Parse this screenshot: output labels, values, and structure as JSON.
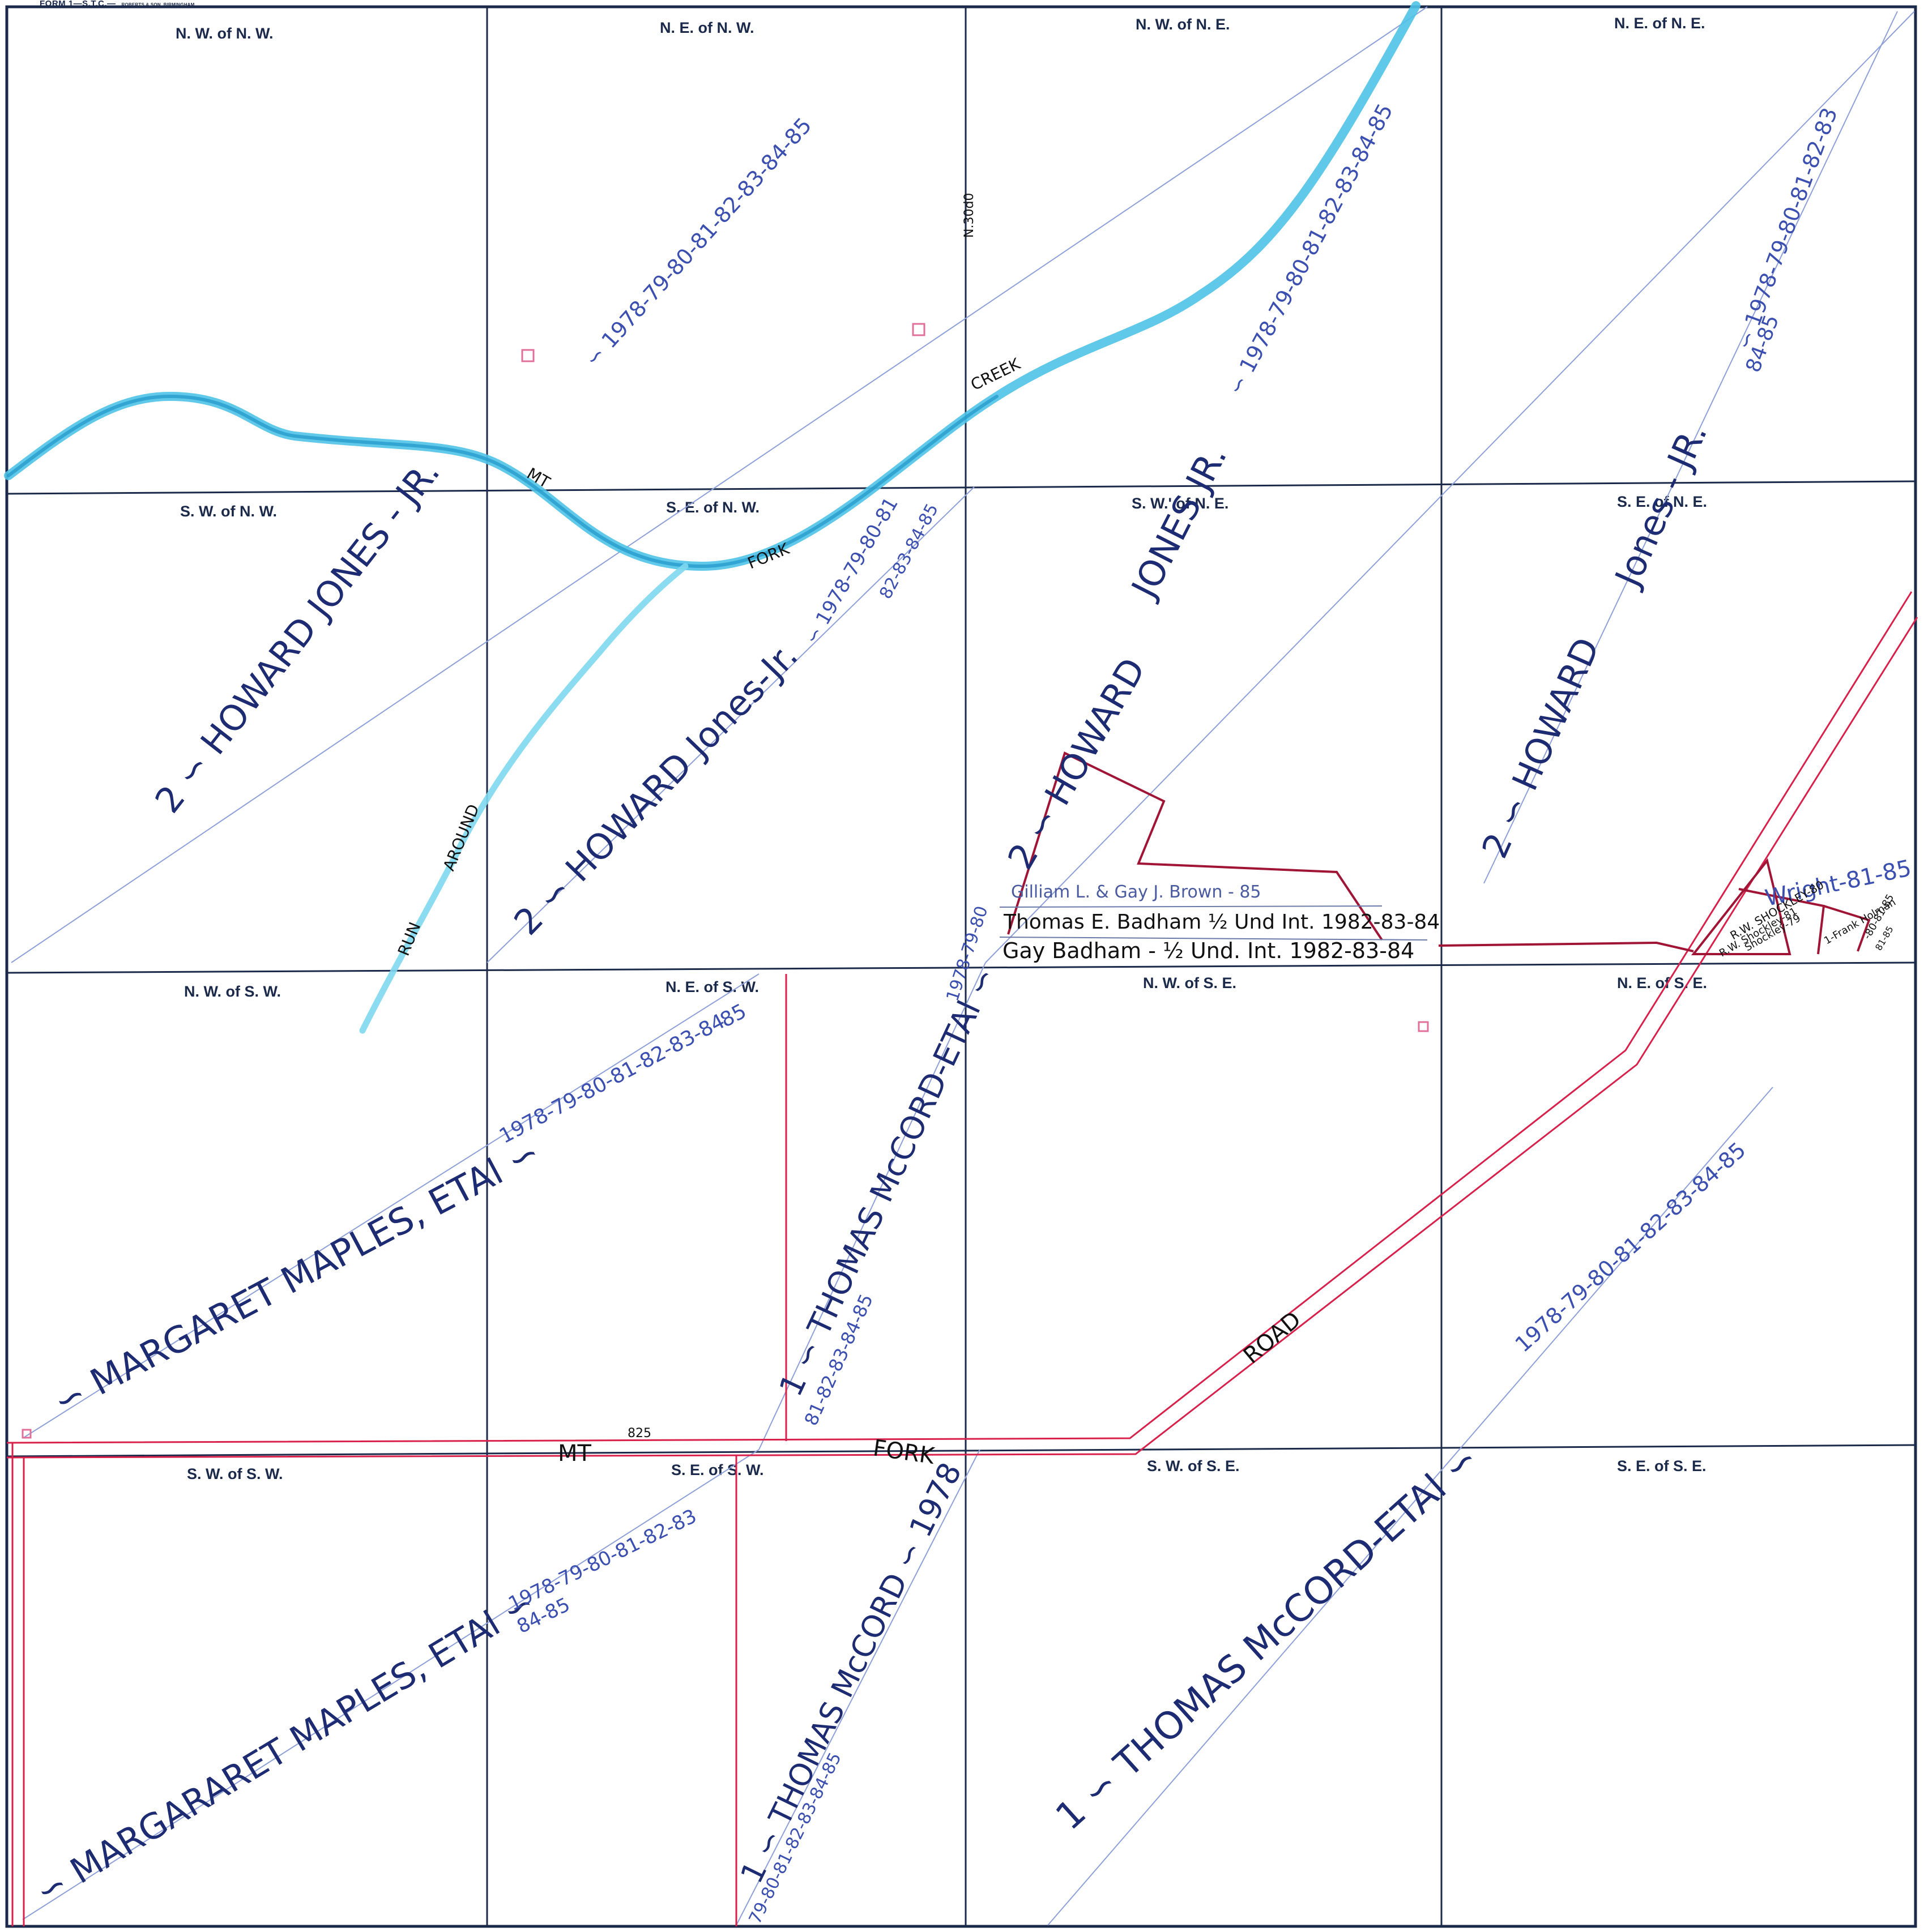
{
  "form_header": {
    "title": "FORM 1—S.T.C.—",
    "publisher": "ROBERTS & SON, BIRMINGHAM"
  },
  "quarters": {
    "nw_of_nw": "N. W. of N. W.",
    "ne_of_nw": "N. E. of N. W.",
    "nw_of_ne": "N. W. of N. E.",
    "ne_of_ne": "N. E. of N. E.",
    "sw_of_nw": "S. W. of N. W.",
    "se_of_nw": "S. E. of N. W.",
    "sw_of_ne": "S. W.' of N. E.",
    "se_of_ne": "S. E. of N. E.",
    "nw_of_sw": "N. W. of S. W.",
    "ne_of_sw": "N. E. of S. W.",
    "nw_of_se": "N. W. of S. E.",
    "ne_of_se": "N. E. of S. E.",
    "sw_of_sw": "S. W. of S. W.",
    "se_of_sw": "S. E. of S. W.",
    "sw_of_se": "S. W. of S. E.",
    "se_of_se": "S. E. of S. E."
  },
  "owners": {
    "howard_jones_1": "2 ∽ HOWARD   JONES - JR.",
    "years_1": "∽ 1978-79-80-81-82-83-84-85",
    "howard_jones_2": "2 ∽ HOWARD  Jones-Jr.",
    "years_2": "∽ 1978-79-80-81",
    "years_2b": "82-83-84-85",
    "howard_jones_3a": "2 ∽ HOWARD",
    "howard_jones_3b": "JONES JR.",
    "years_3": "∽ 1978-79-80-81-82-83-84-85",
    "howard_jones_4a": "2 ∽ HOWARD",
    "howard_jones_4b": "Jones - JR.",
    "years_4": "∽ 1978-79-80-81-82-83",
    "years_4b": "84-85",
    "maples_1": "∽ MARGARET  MAPLES, ETAl ∽",
    "maples_1_years": "1978-79-80-81-82-83-84",
    "maples_1_85": "85",
    "maples_2": "∽ MARGARARET  MAPLES, ETAl ∽",
    "maples_2_years": "1978-79-80-81-82-83",
    "maples_2_tail": "84-85",
    "mccord_1": "1 ∽ THOMAS  McCORD-ETAl ∽",
    "mccord_1_years": "1978-79-80",
    "mccord_1_tail": "81-82-83-84-85",
    "mccord_2": "1 ∽ THOMAS McCORD ∽ 1978",
    "mccord_2_tail": "79-80-81-82-83-84-85",
    "mccord_3": "1 ∽  THOMAS   McCORD-ETAl ∽",
    "mccord_3_years": "1978-79-80-81-82-83-84-85"
  },
  "parcels": {
    "brown": "Gilliam L. & Gay J. Brown - 85",
    "badham_thomas": "Thomas E. Badham ½ Und Int. 1982-83-84",
    "badham_gay": "Gay Badham - ½ Und. Int. 1982-83-84",
    "wright": "Wright-81-85",
    "shockley_1": "R.W. SHOCKLEY-80",
    "shockley_2": "Shockley-79",
    "shockley_3": "R.W. Shockley-81",
    "frank_holman": "1-Frank Holman",
    "small_years": "-80-81-85",
    "tiny_a": "81-85"
  },
  "features": {
    "creek": "CREEK",
    "fork_1": "FORK",
    "mt_1": "MT",
    "run": "RUN",
    "around": "AROUND",
    "road": "ROAD",
    "mt_2": "MT",
    "fork_2": "FORK",
    "number": "825",
    "north_note": "N.30d0"
  }
}
